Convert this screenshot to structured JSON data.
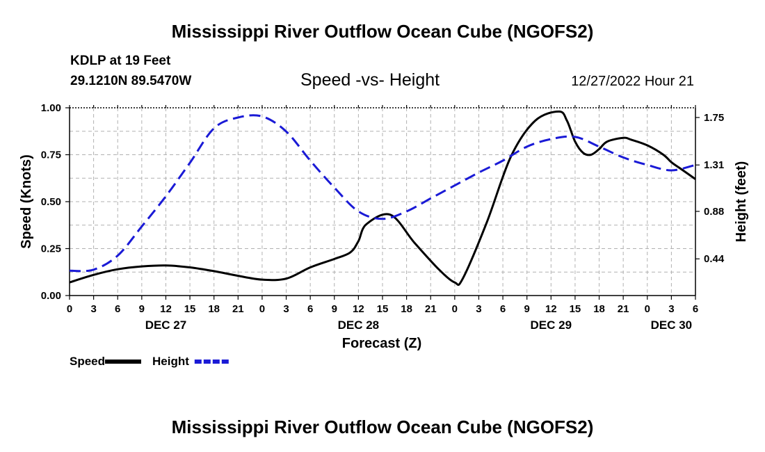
{
  "header": {
    "title": "Mississippi River Outflow Ocean Cube (NGOFS2)",
    "station": "KDLP at 19 Feet",
    "coords": "29.1210N  89.5470W",
    "subtitle": "Speed -vs- Height",
    "datetime": "12/27/2022 Hour 21"
  },
  "footer": {
    "title": "Mississippi River Outflow Ocean Cube (NGOFS2)"
  },
  "colors": {
    "speed": "#000000",
    "height": "#1a1ad6",
    "grid": "#b0b0b0"
  },
  "chart_data": {
    "type": "line",
    "xlabel": "Forecast (Z)",
    "ylabel": "Speed (Knots)",
    "y2label": "Height (feet)",
    "xlim": [
      0,
      78
    ],
    "ylim": [
      0,
      1.0
    ],
    "y2lim": [
      0.1,
      1.84
    ],
    "x_tick_values": [
      0,
      3,
      6,
      9,
      12,
      15,
      18,
      21,
      24,
      27,
      30,
      33,
      36,
      39,
      42,
      45,
      48,
      51,
      54,
      57,
      60,
      63,
      66,
      69,
      72,
      75,
      78
    ],
    "x_tick_labels": [
      "0",
      "3",
      "6",
      "9",
      "12",
      "15",
      "18",
      "21",
      "0",
      "3",
      "6",
      "9",
      "12",
      "15",
      "18",
      "21",
      "0",
      "3",
      "6",
      "9",
      "12",
      "15",
      "18",
      "21",
      "0",
      "3",
      "6"
    ],
    "date_labels": [
      {
        "x": 12,
        "label": "DEC 27"
      },
      {
        "x": 36,
        "label": "DEC 28"
      },
      {
        "x": 60,
        "label": "DEC 29"
      },
      {
        "x": 75,
        "label": "DEC 30"
      }
    ],
    "y_ticks": [
      0,
      0.25,
      0.5,
      0.75,
      1.0
    ],
    "y_tick_labels": [
      "0.00",
      "0.25",
      "0.50",
      "0.75",
      "1.00"
    ],
    "y2_ticks": [
      0.44,
      0.88,
      1.31,
      1.75
    ],
    "y2_tick_labels": [
      "0.44",
      "0.88",
      "1.31",
      "1.75"
    ],
    "grid": true,
    "series": [
      {
        "name": "Speed",
        "axis": "left",
        "style": "solid",
        "x": [
          0,
          3,
          6,
          9,
          12,
          15,
          18,
          21,
          24,
          27,
          30,
          33,
          35,
          36,
          37,
          40,
          43,
          46,
          48,
          49,
          52,
          55,
          58,
          61,
          62,
          63,
          64,
          65,
          66,
          67,
          69,
          70,
          72,
          74,
          75,
          76,
          78
        ],
        "values": [
          0.07,
          0.11,
          0.14,
          0.155,
          0.16,
          0.15,
          0.13,
          0.105,
          0.085,
          0.09,
          0.15,
          0.195,
          0.23,
          0.29,
          0.38,
          0.43,
          0.28,
          0.14,
          0.07,
          0.09,
          0.39,
          0.74,
          0.93,
          0.98,
          0.93,
          0.82,
          0.76,
          0.75,
          0.78,
          0.82,
          0.84,
          0.83,
          0.8,
          0.75,
          0.71,
          0.68,
          0.62
        ]
      },
      {
        "name": "Height",
        "axis": "right",
        "style": "dashed",
        "x": [
          0,
          3,
          6,
          9,
          12,
          15,
          18,
          21,
          24,
          27,
          30,
          33,
          36,
          39,
          42,
          45,
          48,
          51,
          54,
          57,
          60,
          63,
          66,
          69,
          72,
          75,
          78
        ],
        "values": [
          0.33,
          0.34,
          0.47,
          0.74,
          1.02,
          1.33,
          1.65,
          1.75,
          1.76,
          1.62,
          1.35,
          1.1,
          0.88,
          0.81,
          0.88,
          1.0,
          1.12,
          1.24,
          1.35,
          1.48,
          1.55,
          1.57,
          1.48,
          1.38,
          1.31,
          1.26,
          1.31
        ]
      }
    ],
    "legend": [
      {
        "label": "Speed",
        "series": 0
      },
      {
        "label": "Height",
        "series": 1
      }
    ],
    "legend_position": "bottom-left"
  }
}
